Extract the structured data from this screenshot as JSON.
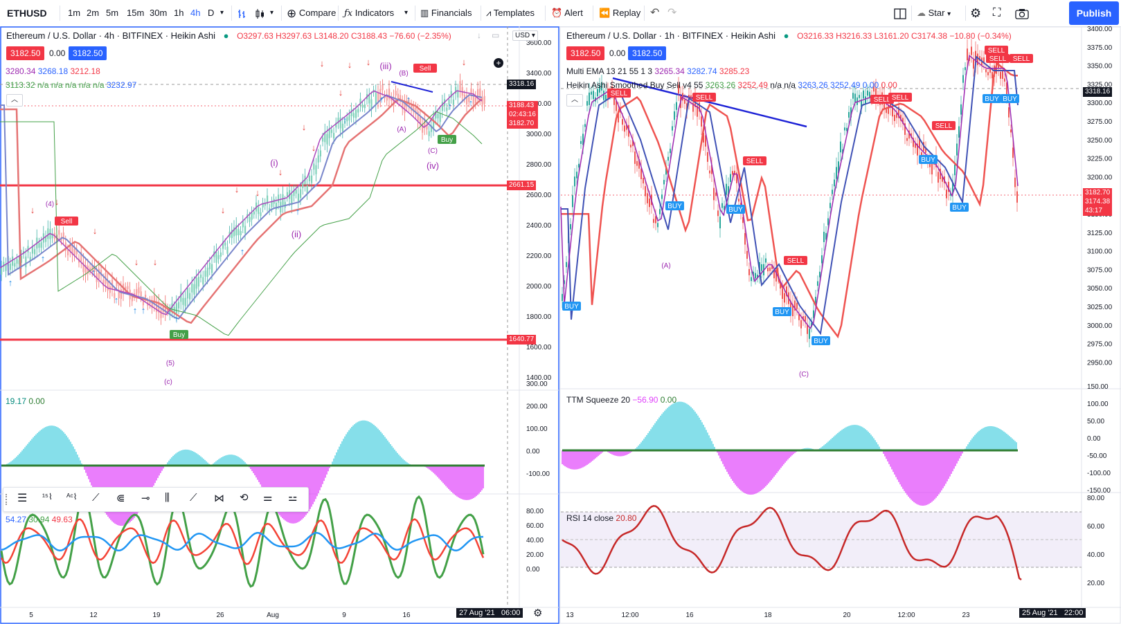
{
  "toolbar": {
    "symbol": "ETHUSD",
    "intervals": [
      "1m",
      "2m",
      "5m",
      "15m",
      "30m",
      "1h",
      "4h",
      "D"
    ],
    "active_interval": "4h",
    "compare": "Compare",
    "indicators": "Indicators",
    "financials": "Financials",
    "templates": "Templates",
    "alert": "Alert",
    "replay": "Replay",
    "star": "Star",
    "publish": "Publish"
  },
  "left_chart": {
    "title": "Ethereum / U.S. Dollar · 4h · BITFINEX · Heikin Ashi",
    "ohlc": {
      "o": "O3297.63",
      "h": "H3297.63",
      "l": "L3148.20",
      "c": "C3188.43",
      "chg": "−76.60 (−2.35%)"
    },
    "bid": "3182.50",
    "spread": "0.00",
    "ask": "3182.50",
    "ema_values": [
      "3280.34",
      "3268.18",
      "3212.18"
    ],
    "ind2_values": [
      "3113.32",
      "n/a n/a n/a n/a n/a",
      "3232.97"
    ],
    "currency": "USD",
    "price_ticks": [
      "3600.00",
      "3400.00",
      "3200.00",
      "3000.00",
      "2800.00",
      "2600.00",
      "2400.00",
      "2200.00",
      "2000.00",
      "1800.00",
      "1600.00",
      "1400.00"
    ],
    "price_tags": {
      "crosshair": "3318.16",
      "last": "3188.43",
      "countdown": "02:43:16",
      "bid": "3182.70",
      "upper_line": "2661.15",
      "lower_line": "1640.77"
    },
    "wave_labels": [
      "(iii)",
      "(B)",
      "(A)",
      "(C)",
      "(iv)",
      "(i)",
      "(ii)",
      "(4)",
      "(5)",
      "(c)"
    ],
    "signals": {
      "sell1": "Sell",
      "sell2": "Sell",
      "buy1": "Buy",
      "buy2": "Buy"
    },
    "sq_legend": [
      "19.17",
      "0.00"
    ],
    "sq_ticks": [
      "300.00",
      "200.00",
      "100.00",
      "0.00",
      "-100.00"
    ],
    "stoch_legend": [
      "54.27",
      "30.94",
      "49.63"
    ],
    "stoch_ticks": [
      "80.00",
      "60.00",
      "40.00",
      "20.00",
      "0.00"
    ],
    "time_ticks": [
      "5",
      "12",
      "19",
      "26",
      "Aug",
      "9",
      "16"
    ],
    "date_tag": "27 Aug '21",
    "time_tag": "06:00"
  },
  "right_chart": {
    "title": "Ethereum / U.S. Dollar · 1h · BITFINEX · Heikin Ashi",
    "ohlc": {
      "o": "O3216.33",
      "h": "H3216.33",
      "l": "L3161.20",
      "c": "C3174.38",
      "chg": "−10.80 (−0.34%)"
    },
    "bid": "3182.50",
    "spread": "0.00",
    "ask": "3182.50",
    "ema_label": "Multi EMA 13 21 55 1 3",
    "ema_values": [
      "3265.34",
      "3282.74",
      "3285.23"
    ],
    "ha_label": "Heikin Ashi Smoothed Buy Sell v4 55",
    "ha_values": [
      "3263.26",
      "3252.49",
      "n/a n/a",
      "3263.26",
      "3252.49",
      "0.00",
      "0.00"
    ],
    "price_ticks": [
      "3400.00",
      "3375.00",
      "3350.00",
      "3325.00",
      "3300.00",
      "3275.00",
      "3250.00",
      "3225.00",
      "3200.00",
      "3175.00",
      "3150.00",
      "3125.00",
      "3100.00",
      "3075.00",
      "3050.00",
      "3025.00",
      "3000.00",
      "2975.00",
      "2950.00"
    ],
    "price_tags": {
      "crosshair": "3318.16",
      "bid": "3182.70",
      "last": "3174.38",
      "countdown": "43:17"
    },
    "wave_labels": [
      "(A)",
      "(C)"
    ],
    "signals": {
      "sell": "SELL",
      "buy": "BUY"
    },
    "sq_legend_name": "TTM Squeeze 20",
    "sq_legend": [
      "−56.90",
      "0.00"
    ],
    "sq_ticks": [
      "150.00",
      "100.00",
      "50.00",
      "0.00",
      "-50.00",
      "-100.00",
      "-150.00"
    ],
    "rsi_legend_name": "RSI 14 close",
    "rsi_value": "20.80",
    "rsi_ticks": [
      "80.00",
      "60.00",
      "40.00",
      "20.00"
    ],
    "time_ticks": [
      "13",
      "12:00",
      "16",
      "18",
      "20",
      "12:00",
      "23"
    ],
    "date_tag": "25 Aug '21",
    "time_tag": "22:00"
  },
  "colors": {
    "accent": "#2962ff",
    "red": "#f23645",
    "green": "#089981",
    "purple": "#9c27b0"
  }
}
